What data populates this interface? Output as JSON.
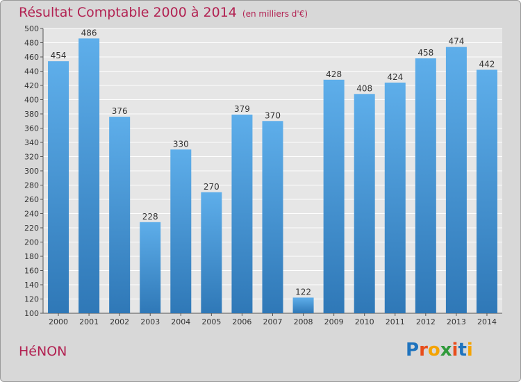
{
  "header": {
    "title": "Résultat Comptable 2000 à 2014",
    "subtitle": "(en milliers d'€)"
  },
  "footer": {
    "commune": "HéNON",
    "logo_text": "Proxiti",
    "logo_colors": [
      "#1e73be",
      "#e84d1b",
      "#f4a300",
      "#2f9a3a",
      "#e84d1b",
      "#1e73be",
      "#f4a300"
    ]
  },
  "colors": {
    "bar_top": "#5eaeea",
    "bar_bottom": "#2f78b7",
    "title": "#b22252",
    "background": "#d8d8d8",
    "plot_background": "#e6e6e6"
  },
  "chart_data": {
    "type": "bar",
    "title": "Résultat Comptable 2000 à 2014",
    "categories": [
      "2000",
      "2001",
      "2002",
      "2003",
      "2004",
      "2005",
      "2006",
      "2007",
      "2008",
      "2009",
      "2010",
      "2011",
      "2012",
      "2013",
      "2014"
    ],
    "values": [
      454,
      486,
      376,
      228,
      330,
      270,
      379,
      370,
      122,
      428,
      408,
      424,
      458,
      474,
      442
    ],
    "ylim": [
      100,
      500
    ],
    "yticks": [
      100,
      120,
      140,
      160,
      180,
      200,
      220,
      240,
      260,
      280,
      300,
      320,
      340,
      360,
      380,
      400,
      420,
      440,
      460,
      480,
      500
    ],
    "grid": true,
    "xlabel": "",
    "ylabel": ""
  }
}
